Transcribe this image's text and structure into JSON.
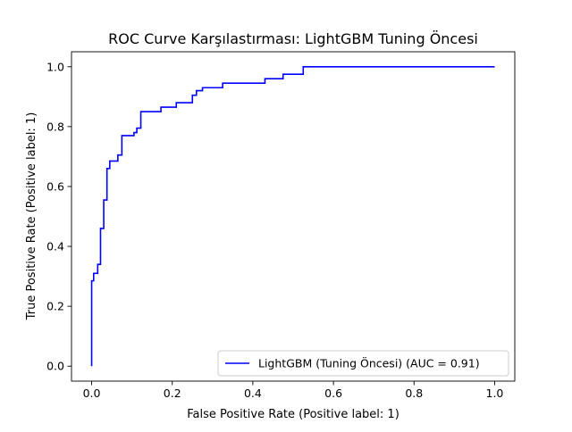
{
  "chart_data": {
    "type": "line",
    "title": "ROC Curve Karşılastırması: LightGBM Tuning Öncesi",
    "xlabel": "False Positive Rate (Positive label: 1)",
    "ylabel": "True Positive Rate (Positive label: 1)",
    "xlim": [
      -0.05,
      1.05
    ],
    "ylim": [
      -0.05,
      1.05
    ],
    "x_ticks": [
      "0.0",
      "0.2",
      "0.4",
      "0.6",
      "0.8",
      "1.0"
    ],
    "y_ticks": [
      "0.0",
      "0.2",
      "0.4",
      "0.6",
      "0.8",
      "1.0"
    ],
    "grid": false,
    "legend_position": "lower-right",
    "series": [
      {
        "name": "LightGBM (Tuning Öncesi) (AUC = 0.91)",
        "color": "#0000ff",
        "step": true,
        "x": [
          0.0,
          0.0,
          0.0,
          0.005,
          0.005,
          0.015,
          0.015,
          0.022,
          0.022,
          0.03,
          0.03,
          0.038,
          0.038,
          0.045,
          0.045,
          0.065,
          0.065,
          0.075,
          0.075,
          0.105,
          0.105,
          0.112,
          0.112,
          0.122,
          0.122,
          0.172,
          0.172,
          0.21,
          0.21,
          0.25,
          0.25,
          0.26,
          0.26,
          0.275,
          0.275,
          0.325,
          0.325,
          0.43,
          0.43,
          0.475,
          0.475,
          0.525,
          0.525,
          0.555,
          0.555,
          1.0
        ],
        "y": [
          0.0,
          0.0,
          0.285,
          0.285,
          0.31,
          0.31,
          0.34,
          0.34,
          0.46,
          0.46,
          0.555,
          0.555,
          0.66,
          0.66,
          0.685,
          0.685,
          0.705,
          0.705,
          0.77,
          0.77,
          0.78,
          0.78,
          0.795,
          0.795,
          0.85,
          0.85,
          0.865,
          0.865,
          0.88,
          0.88,
          0.905,
          0.905,
          0.92,
          0.92,
          0.93,
          0.93,
          0.945,
          0.945,
          0.96,
          0.96,
          0.975,
          0.975,
          1.0,
          1.0,
          1.0,
          1.0
        ]
      }
    ]
  }
}
